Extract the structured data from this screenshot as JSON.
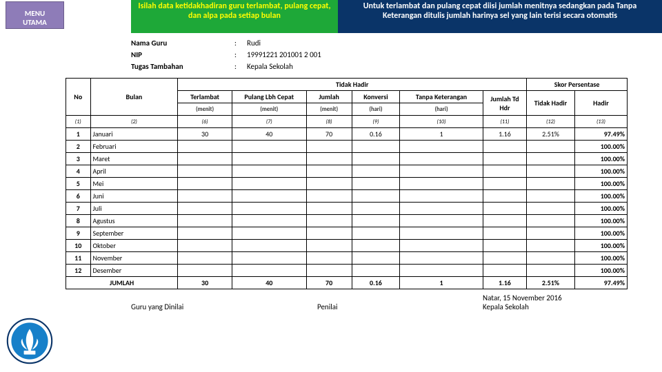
{
  "menu": {
    "line1": "MENU",
    "line2": "UTAMA"
  },
  "green": "Isilah data ketidakhadiran guru terlambat, pulang cepat, dan alpa pada setiap bulan",
  "blue": "Untuk terlambat dan pulang cepat diisi jumlah menitnya sedangkan pada Tanpa Keterangan ditulis jumlah harinya sel yang lain terisi secara otomatis",
  "info": {
    "namaLabel": "Nama Guru",
    "nama": "Rudi",
    "nipLabel": "NIP",
    "nip": "19991221 201001 2 001",
    "tugasLabel": "Tugas Tambahan",
    "tugas": "Kepala Sekolah"
  },
  "headers": {
    "no": "No",
    "bulan": "Bulan",
    "tidakHadir": "Tidak Hadir",
    "terlambat": "Terlambat",
    "pulang": "Pulang Lbh Cepat",
    "jumlah": "Jumlah",
    "konversi": "Konversi",
    "tanpa": "Tanpa Keterangan",
    "jumlahTd": "Jumlah Td Hdr",
    "skor": "Skor Persentase",
    "tidakHadirP": "Tidak Hadir",
    "hadir": "Hadir",
    "menit": "(menit)",
    "hari": "(hari)"
  },
  "idx": {
    "c1": "(1)",
    "c2": "(2)",
    "c6": "(6)",
    "c7": "(7)",
    "c8": "(8)",
    "c9": "(9)",
    "c10": "(10)",
    "c11": "(11)",
    "c12": "(12)",
    "c13": "(13)"
  },
  "rows": [
    {
      "n": "1",
      "m": "Januari",
      "t": "30",
      "p": "40",
      "j": "70",
      "k": "0.16",
      "tk": "1",
      "jt": "1.16",
      "th": "2.51%",
      "h": "97.49%"
    },
    {
      "n": "2",
      "m": "Februari",
      "t": "",
      "p": "",
      "j": "",
      "k": "",
      "tk": "",
      "jt": "",
      "th": "",
      "h": "100.00%"
    },
    {
      "n": "3",
      "m": "Maret",
      "t": "",
      "p": "",
      "j": "",
      "k": "",
      "tk": "",
      "jt": "",
      "th": "",
      "h": "100.00%"
    },
    {
      "n": "4",
      "m": "April",
      "t": "",
      "p": "",
      "j": "",
      "k": "",
      "tk": "",
      "jt": "",
      "th": "",
      "h": "100.00%"
    },
    {
      "n": "5",
      "m": "Mei",
      "t": "",
      "p": "",
      "j": "",
      "k": "",
      "tk": "",
      "jt": "",
      "th": "",
      "h": "100.00%"
    },
    {
      "n": "6",
      "m": "Juni",
      "t": "",
      "p": "",
      "j": "",
      "k": "",
      "tk": "",
      "jt": "",
      "th": "",
      "h": "100.00%"
    },
    {
      "n": "7",
      "m": "Juli",
      "t": "",
      "p": "",
      "j": "",
      "k": "",
      "tk": "",
      "jt": "",
      "th": "",
      "h": "100.00%"
    },
    {
      "n": "8",
      "m": "Agustus",
      "t": "",
      "p": "",
      "j": "",
      "k": "",
      "tk": "",
      "jt": "",
      "th": "",
      "h": "100.00%"
    },
    {
      "n": "9",
      "m": "September",
      "t": "",
      "p": "",
      "j": "",
      "k": "",
      "tk": "",
      "jt": "",
      "th": "",
      "h": "100.00%"
    },
    {
      "n": "10",
      "m": "Oktober",
      "t": "",
      "p": "",
      "j": "",
      "k": "",
      "tk": "",
      "jt": "",
      "th": "",
      "h": "100.00%"
    },
    {
      "n": "11",
      "m": "November",
      "t": "",
      "p": "",
      "j": "",
      "k": "",
      "tk": "",
      "jt": "",
      "th": "",
      "h": "100.00%"
    },
    {
      "n": "12",
      "m": "Desember",
      "t": "",
      "p": "",
      "j": "",
      "k": "",
      "tk": "",
      "jt": "",
      "th": "",
      "h": "100.00%"
    }
  ],
  "total": {
    "label": "JUMLAH",
    "t": "30",
    "p": "40",
    "j": "70",
    "k": "0.16",
    "tk": "1",
    "jt": "1.16",
    "th": "2.51%",
    "h": "97.49%"
  },
  "footer": {
    "place": "Natar, 15 November 2016",
    "guru": "Guru yang Dinilai",
    "penilai": "Penilai",
    "kepala": "Kepala Sekolah"
  },
  "logo_colors": {
    "ring": "#0a3468",
    "fill": "#ffffff",
    "center": "#1780c9",
    "flame": "#ffffff"
  }
}
